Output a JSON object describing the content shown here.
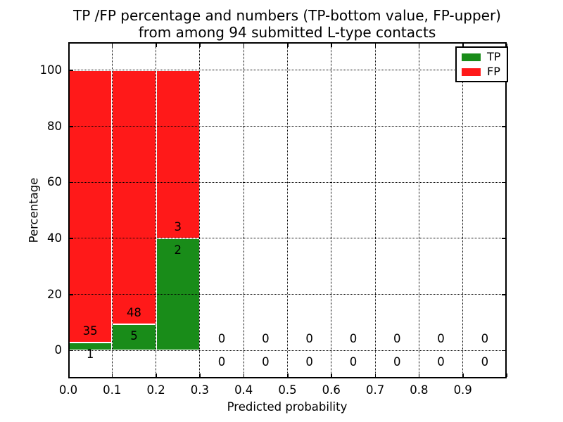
{
  "title": {
    "line1": "TP /FP percentage and numbers (TP-bottom value, FP-upper)",
    "line2": "from among 94 submitted L-type contacts"
  },
  "axes": {
    "xlabel": "Predicted probability",
    "ylabel": "Percentage",
    "x_ticks": [
      "0.0",
      "0.1",
      "0.2",
      "0.3",
      "0.4",
      "0.5",
      "0.6",
      "0.7",
      "0.8",
      "0.9"
    ],
    "y_ticks": [
      0,
      20,
      40,
      60,
      80,
      100
    ],
    "xlim": [
      0.0,
      1.0
    ],
    "ylim": [
      -10,
      110
    ],
    "grid": "dotted"
  },
  "legend": {
    "position": "upper-right",
    "entries": [
      {
        "label": "TP",
        "color": "#198c19"
      },
      {
        "label": "FP",
        "color": "#ff1919"
      }
    ]
  },
  "colors": {
    "tp": "#198c19",
    "fp": "#ff1919",
    "grid": "#000000",
    "background": "#ffffff"
  },
  "chart_data": {
    "type": "bar",
    "stacked": true,
    "title": "TP /FP percentage and numbers (TP-bottom value, FP-upper) from among 94 submitted L-type contacts",
    "xlabel": "Predicted probability",
    "ylabel": "Percentage",
    "total_contacts": 94,
    "note": "Each bin stacked to 100%: TP share bottom (green), FP share top (red); counts printed at the TP/FP boundary, zeros printed for empty bins",
    "bins": [
      {
        "x0": 0.0,
        "x1": 0.1,
        "tp_count": 1,
        "fp_count": 35,
        "tp_pct": 2.78,
        "fp_pct": 97.22
      },
      {
        "x0": 0.1,
        "x1": 0.2,
        "tp_count": 5,
        "fp_count": 48,
        "tp_pct": 9.43,
        "fp_pct": 90.57
      },
      {
        "x0": 0.2,
        "x1": 0.3,
        "tp_count": 2,
        "fp_count": 3,
        "tp_pct": 40.0,
        "fp_pct": 60.0
      },
      {
        "x0": 0.3,
        "x1": 0.4,
        "tp_count": 0,
        "fp_count": 0,
        "tp_pct": 0,
        "fp_pct": 0
      },
      {
        "x0": 0.4,
        "x1": 0.5,
        "tp_count": 0,
        "fp_count": 0,
        "tp_pct": 0,
        "fp_pct": 0
      },
      {
        "x0": 0.5,
        "x1": 0.6,
        "tp_count": 0,
        "fp_count": 0,
        "tp_pct": 0,
        "fp_pct": 0
      },
      {
        "x0": 0.6,
        "x1": 0.7,
        "tp_count": 0,
        "fp_count": 0,
        "tp_pct": 0,
        "fp_pct": 0
      },
      {
        "x0": 0.7,
        "x1": 0.8,
        "tp_count": 0,
        "fp_count": 0,
        "tp_pct": 0,
        "fp_pct": 0
      },
      {
        "x0": 0.8,
        "x1": 0.9,
        "tp_count": 0,
        "fp_count": 0,
        "tp_pct": 0,
        "fp_pct": 0
      },
      {
        "x0": 0.9,
        "x1": 1.0,
        "tp_count": 0,
        "fp_count": 0,
        "tp_pct": 0,
        "fp_pct": 0
      }
    ]
  }
}
